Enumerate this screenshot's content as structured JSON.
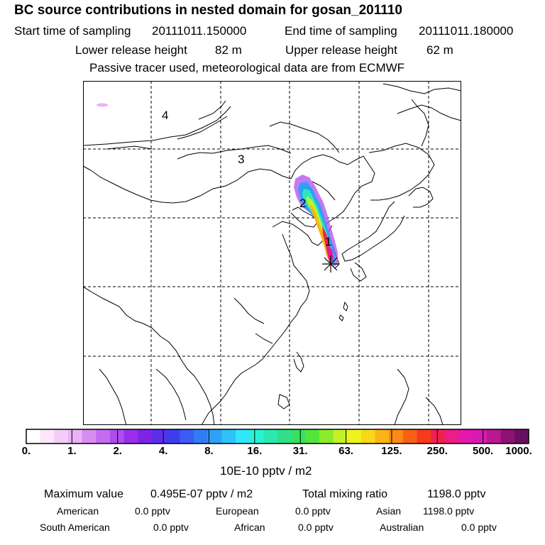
{
  "header": {
    "title": "BC  source contributions in nested domain for gosan_201110",
    "start_label": "Start time of sampling",
    "start_value": "20111011.150000",
    "end_label": "End time of sampling",
    "end_value": "20111011.180000",
    "lower_label": "Lower release height",
    "lower_value": "82 m",
    "upper_label": "Upper release height",
    "upper_value": "62 m",
    "note": "Passive tracer used, meteorological data are from ECMWF"
  },
  "map": {
    "labels": [
      "4",
      "3",
      "2",
      "1"
    ],
    "station_marker": "asterisk-icon"
  },
  "colorbar": {
    "colors": [
      "#ffffff",
      "#fbe6fb",
      "#f4ccf8",
      "#eab2f5",
      "#d78cf2",
      "#c46bf0",
      "#b04cee",
      "#9a2fe9",
      "#7d24e6",
      "#5c2eea",
      "#3e3ded",
      "#3c5cf3",
      "#2f7ef5",
      "#2ea0f7",
      "#2ec2f9",
      "#2fe6fb",
      "#27f2d8",
      "#2be8b0",
      "#2fe088",
      "#38e060",
      "#55e43a",
      "#8aec2c",
      "#c4f224",
      "#f0f21e",
      "#f8d81a",
      "#fab416",
      "#fa8a16",
      "#f86016",
      "#f63a1c",
      "#f22052",
      "#ec1c88",
      "#e418ae",
      "#d81ab4",
      "#b81892",
      "#8e1272",
      "#681060"
    ],
    "tick_labels": [
      "0.",
      "1.",
      "2.",
      "4.",
      "8.",
      "16.",
      "31.",
      "63.",
      "125.",
      "250.",
      "500.",
      "1000."
    ],
    "units": "10E-10 pptv / m2"
  },
  "summary": {
    "max_label": "Maximum value",
    "max_value": "0.495E-07 pptv / m2",
    "total_label": "Total mixing ratio",
    "total_value": "1198.0 pptv",
    "american_label": "American",
    "american_value": "0.0 pptv",
    "european_label": "European",
    "european_value": "0.0 pptv",
    "asian_label": "Asian",
    "asian_value": "1198.0 pptv",
    "south_american_label": "South American",
    "south_american_value": "0.0 pptv",
    "african_label": "African",
    "african_value": "0.0 pptv",
    "australian_label": "Australian",
    "australian_value": "0.0 pptv"
  }
}
